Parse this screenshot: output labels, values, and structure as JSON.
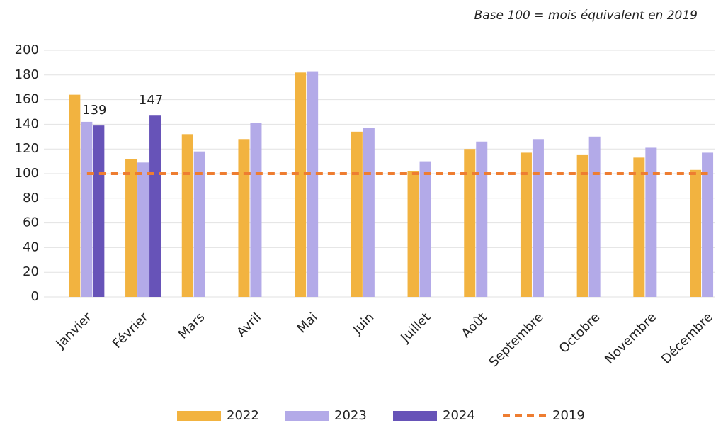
{
  "chart_data": {
    "type": "bar",
    "subtitle": "Base 100 = mois équivalent en 2019",
    "categories": [
      "Janvier",
      "Février",
      "Mars",
      "Avril",
      "Mai",
      "Juin",
      "Juillet",
      "Août",
      "Septembre",
      "Octobre",
      "Novembre",
      "Décembre"
    ],
    "series": [
      {
        "name": "2022",
        "color": "#f2b340",
        "values": [
          164,
          112,
          132,
          128,
          182,
          134,
          102,
          120,
          117,
          115,
          113,
          103
        ]
      },
      {
        "name": "2023",
        "color": "#b3aae8",
        "values": [
          142,
          109,
          118,
          141,
          183,
          137,
          110,
          126,
          128,
          130,
          121,
          117
        ]
      },
      {
        "name": "2024",
        "color": "#6753b8",
        "values": [
          139,
          147,
          null,
          null,
          null,
          null,
          null,
          null,
          null,
          null,
          null,
          null
        ],
        "data_labels": true
      },
      {
        "name": "2019",
        "color": "#ee7d31",
        "type": "line",
        "dashed": true,
        "values": [
          100,
          100,
          100,
          100,
          100,
          100,
          100,
          100,
          100,
          100,
          100,
          100
        ]
      }
    ],
    "ylim": [
      0,
      200
    ],
    "yticks": [
      0,
      20,
      40,
      60,
      80,
      100,
      120,
      140,
      160,
      180,
      200
    ],
    "grid": true,
    "legend": "bottom"
  }
}
